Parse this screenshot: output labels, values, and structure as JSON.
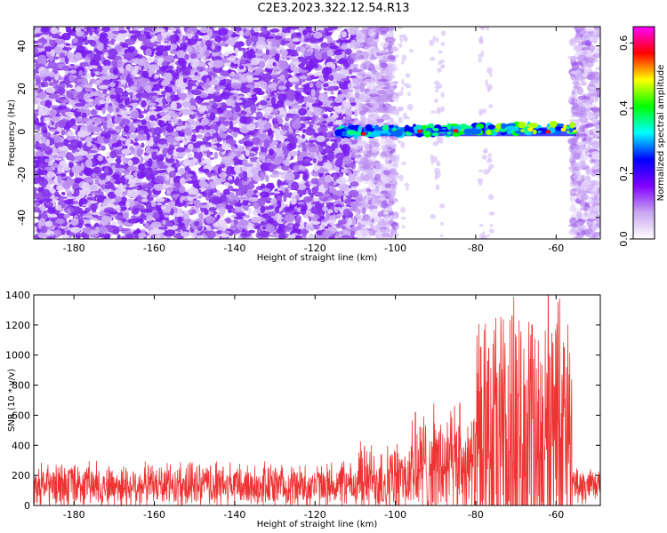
{
  "figure_title": "C2E3.2023.322.12.54.R13",
  "chart_data": [
    {
      "type": "heatmap",
      "title": "",
      "xlabel": "Height of straight line (km)",
      "ylabel": "Frequency (Hz)",
      "xlim": [
        -190,
        -49
      ],
      "ylim": [
        -50,
        49
      ],
      "x_ticks": [
        -180,
        -160,
        -140,
        -120,
        -100,
        -80,
        -60
      ],
      "y_ticks": [
        -40,
        -20,
        0,
        20,
        40
      ],
      "colorbar": {
        "label": "Normalized spectral amplitude",
        "range": [
          0,
          0.65
        ],
        "ticks": [
          0.0,
          0.2,
          0.4,
          0.6
        ],
        "tick_labels": [
          "0.0",
          "0.2",
          "0.4",
          "0.6"
        ],
        "colormap": [
          "#ffffff",
          "#c9a6f0",
          "#8000ff",
          "#0000ff",
          "#00ffff",
          "#00ff00",
          "#ffff00",
          "#ff0000",
          "#ff00ff"
        ]
      },
      "features": [
        {
          "kind": "noise_speckle",
          "x_range": [
            -190,
            -100
          ],
          "y_range": [
            -50,
            49
          ],
          "amplitude": 0.05
        },
        {
          "kind": "tone_band",
          "x_range": [
            -116,
            -55
          ],
          "frequency_hz": 0,
          "peak_amplitude": 0.6
        },
        {
          "kind": "noise_speckle",
          "x_range": [
            -56,
            -49
          ],
          "y_range": [
            -50,
            49
          ],
          "amplitude": 0.05
        }
      ]
    },
    {
      "type": "line",
      "title": "",
      "xlabel": "Height of straight line (km)",
      "ylabel": "SNR (10 * v/v)",
      "xlim": [
        -190,
        -49
      ],
      "ylim": [
        0,
        1400
      ],
      "x_ticks": [
        -180,
        -160,
        -140,
        -120,
        -100,
        -80,
        -60
      ],
      "y_ticks": [
        0,
        200,
        400,
        600,
        800,
        1000,
        1200,
        1400
      ],
      "color": "#ee3333",
      "series_summary": [
        {
          "x_range": [
            -190,
            -110
          ],
          "baseline": 130,
          "noise_max": 300
        },
        {
          "x_range": [
            -110,
            -96
          ],
          "baseline": 170,
          "noise_max": 450
        },
        {
          "x_range": [
            -96,
            -80
          ],
          "baseline": 250,
          "noise_max": 690
        },
        {
          "x_range": [
            -80,
            -56
          ],
          "baseline": 320,
          "noise_max": 1400
        },
        {
          "x_range": [
            -56,
            -49
          ],
          "baseline": 120,
          "noise_max": 250
        }
      ],
      "peaks": [
        {
          "x": -95,
          "y": 620
        },
        {
          "x": -84,
          "y": 680
        },
        {
          "x": -77,
          "y": 960
        },
        {
          "x": -71,
          "y": 1260
        },
        {
          "x": -66,
          "y": 1200
        },
        {
          "x": -62,
          "y": 1400
        },
        {
          "x": -58,
          "y": 1050
        }
      ]
    }
  ]
}
